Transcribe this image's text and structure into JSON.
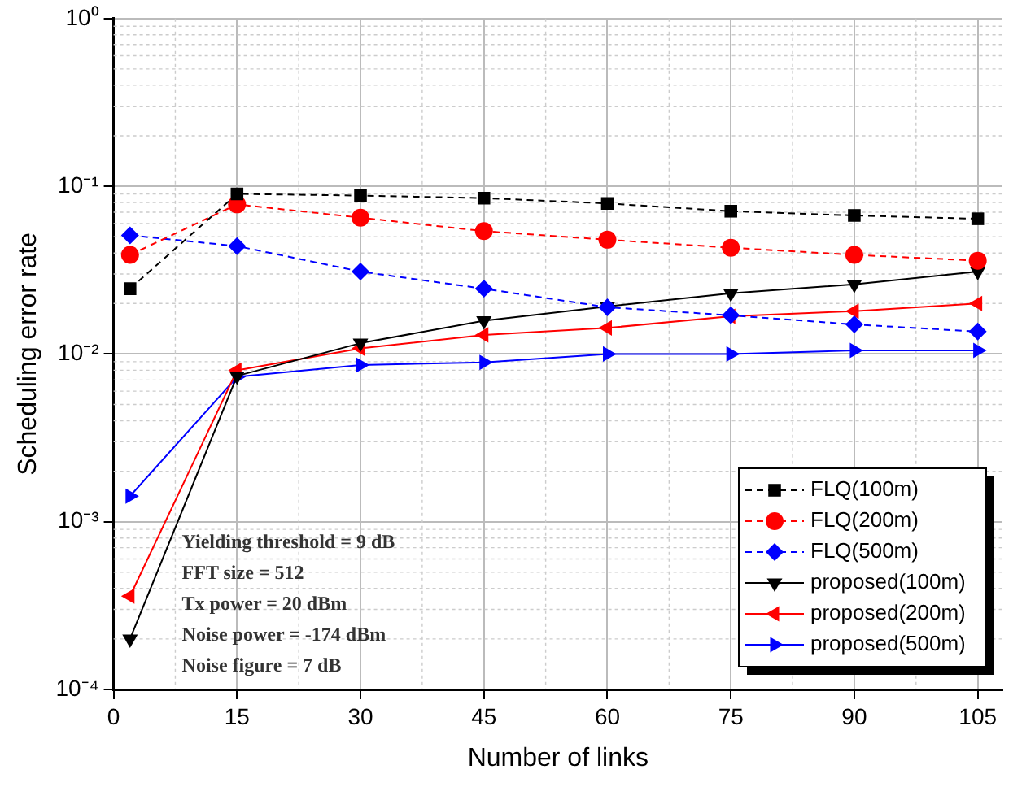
{
  "chart_data": {
    "type": "line",
    "xlabel": "Number of links",
    "ylabel": "Scheduling error rate",
    "x": [
      2,
      15,
      30,
      45,
      60,
      75,
      90,
      105
    ],
    "series": [
      {
        "name": "FLQ(100m)",
        "color": "#000000",
        "marker": "square",
        "line_style": "dashed",
        "values": [
          0.0245,
          0.09,
          0.088,
          0.085,
          0.079,
          0.071,
          0.067,
          0.064
        ]
      },
      {
        "name": "FLQ(200m)",
        "color": "#ff0000",
        "marker": "circle",
        "line_style": "dashed",
        "values": [
          0.039,
          0.078,
          0.065,
          0.054,
          0.048,
          0.043,
          0.039,
          0.036
        ]
      },
      {
        "name": "FLQ(500m)",
        "color": "#0000ff",
        "marker": "diamond",
        "line_style": "dashed",
        "values": [
          0.051,
          0.044,
          0.031,
          0.0245,
          0.019,
          0.017,
          0.015,
          0.0136
        ]
      },
      {
        "name": "proposed(100m)",
        "color": "#000000",
        "marker": "triangle",
        "line_style": "solid",
        "values": [
          0.0002,
          0.0074,
          0.0116,
          0.0158,
          0.0192,
          0.023,
          0.026,
          0.031
        ]
      },
      {
        "name": "proposed(200m)",
        "color": "#ff0000",
        "marker": "triangle",
        "line_style": "solid",
        "values": [
          0.00036,
          0.008,
          0.0108,
          0.013,
          0.0143,
          0.0168,
          0.018,
          0.02
        ]
      },
      {
        "name": "proposed(500m)",
        "color": "#0000ff",
        "marker": "triangle",
        "line_style": "solid",
        "values": [
          0.00142,
          0.0073,
          0.0086,
          0.0089,
          0.01,
          0.01,
          0.0105,
          0.0105
        ]
      }
    ],
    "log": "y",
    "xlim": [
      0,
      108
    ],
    "xticks": [
      0,
      15,
      30,
      45,
      60,
      75,
      90,
      105
    ],
    "ylim": [
      0.0001,
      1
    ],
    "yticks": [
      {
        "value": 0.0001,
        "label": "10⁻⁴"
      },
      {
        "value": 0.001,
        "label": "10⁻³"
      },
      {
        "value": 0.01,
        "label": "10⁻²"
      },
      {
        "value": 0.1,
        "label": "10⁻¹"
      },
      {
        "value": 1,
        "label": "10⁰"
      }
    ],
    "grid": true,
    "legend": "bottom right",
    "annotations": [
      "Yielding threshold = 9 dB",
      "FFT size = 512",
      "Tx power = 20 dBm",
      "Noise power = -174 dBm",
      "Noise figure = 7 dB"
    ]
  }
}
